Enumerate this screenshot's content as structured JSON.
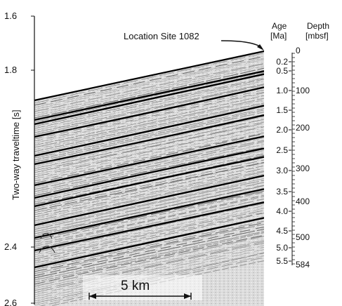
{
  "figure": {
    "location_label": "Location Site 1082",
    "scale_bar_label": "5 km"
  },
  "axes": {
    "left_title": "Two-way traveltime [s]",
    "left_ticks": [
      "1.6",
      "1.8",
      "2.4",
      "2.6"
    ],
    "age_title_line1": "Age",
    "age_title_line2": "[Ma]",
    "age_ticks": [
      "0.2",
      "0.5",
      "1.0",
      "1.5",
      "2.0",
      "2.5",
      "3.0",
      "3.5",
      "4.0",
      "4.5",
      "5.0",
      "5.5"
    ],
    "depth_title_line1": "Depth",
    "depth_title_line2": "[mbsf]",
    "depth_ticks": [
      "0",
      "100",
      "200",
      "300",
      "400",
      "500",
      "584"
    ]
  },
  "colors": {
    "strong_reflector": "#000000",
    "faint_reflector": "#9a9a9a",
    "seismic_background": "#d8d8d8"
  }
}
